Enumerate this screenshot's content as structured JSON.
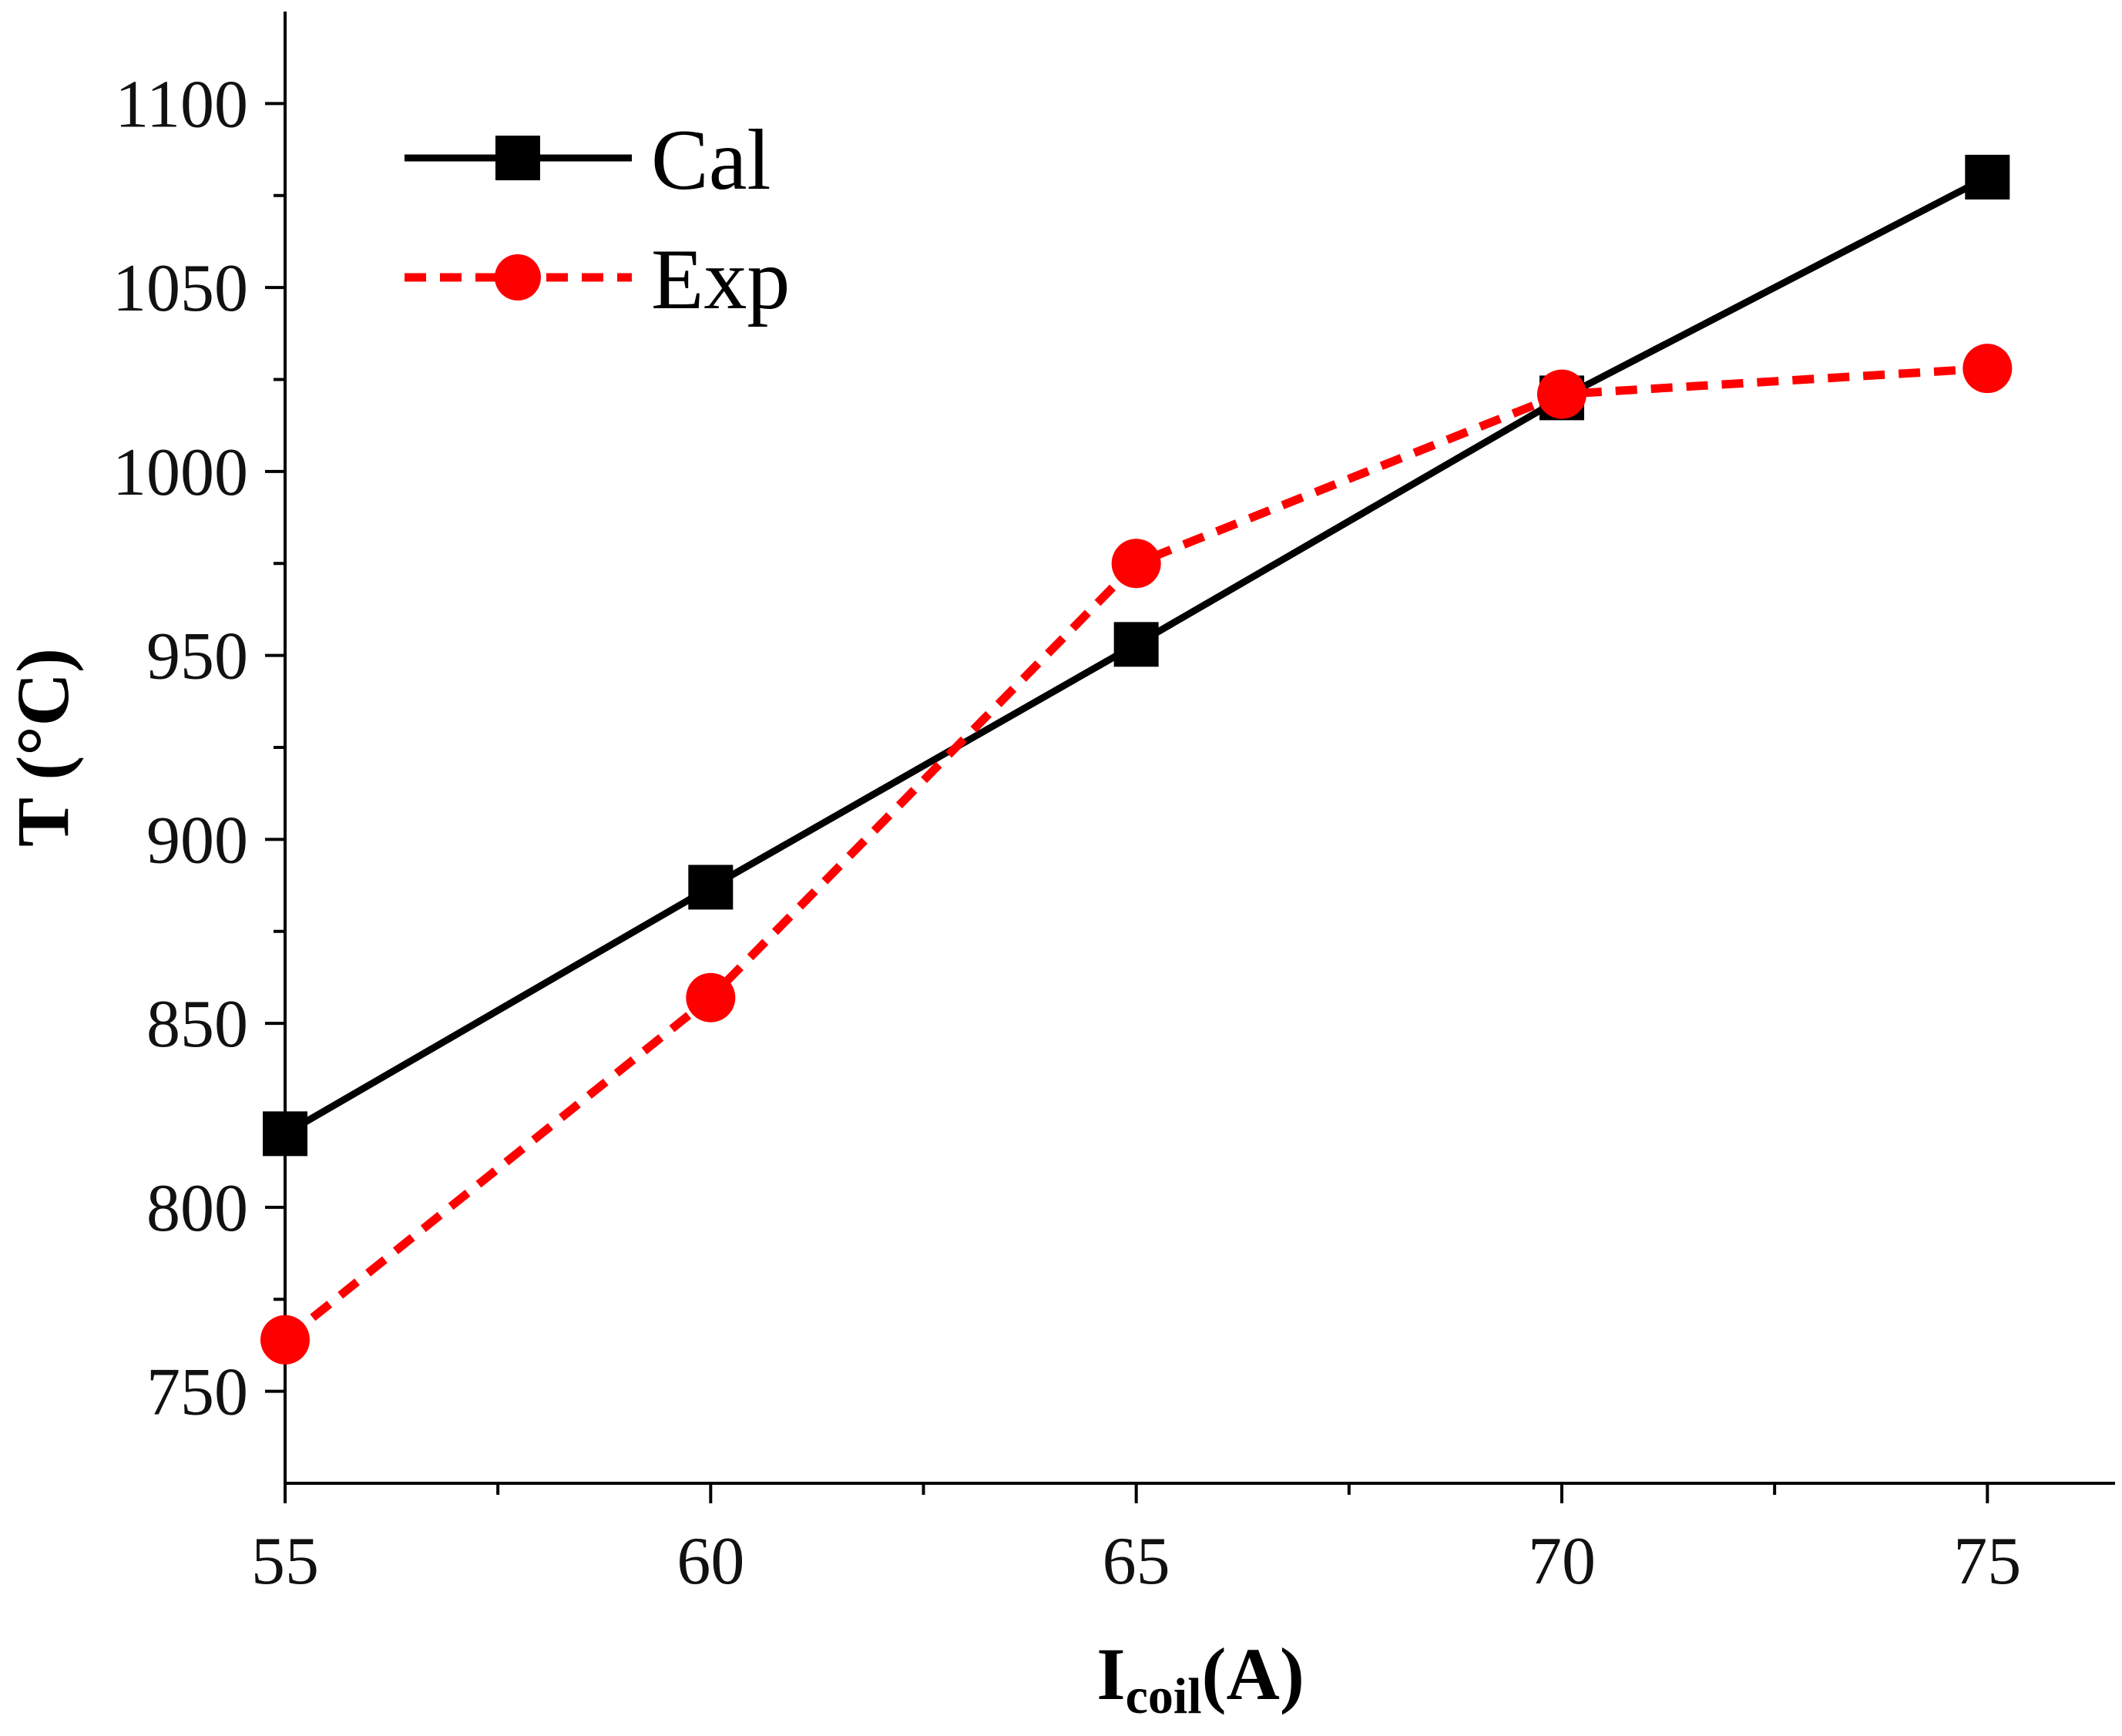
{
  "chart_data": {
    "type": "line",
    "title": "",
    "xlabel": "I",
    "xlabel_subscript": "coil",
    "xlabel_suffix": "(A)",
    "ylabel": "T (°C)",
    "xlim": [
      55,
      76.5
    ],
    "ylim": [
      725,
      1125
    ],
    "x_ticks": [
      55,
      60,
      65,
      70,
      75
    ],
    "y_ticks": [
      750,
      800,
      850,
      900,
      950,
      1000,
      1050,
      1100
    ],
    "x_tick_labels": [
      "55",
      "60",
      "65",
      "70",
      "75"
    ],
    "y_tick_labels": [
      "750",
      "800",
      "850",
      "900",
      "950",
      "1000",
      "1050",
      "1100"
    ],
    "x_minor_ticks": [
      57.5,
      62.5,
      67.5,
      72.5
    ],
    "y_minor_ticks": [
      775,
      825,
      875,
      925,
      975,
      1025,
      1075
    ],
    "grid": false,
    "legend_position": "top-left",
    "x": [
      55,
      60,
      65,
      70,
      75
    ],
    "series": [
      {
        "name": "Cal",
        "values": [
          820,
          887,
          953,
          1020,
          1080
        ],
        "color": "#000000",
        "line_style": "solid",
        "marker": "square"
      },
      {
        "name": "Exp",
        "values": [
          764,
          857,
          975,
          1021,
          1028
        ],
        "color": "#ff0000",
        "line_style": "dashed",
        "marker": "circle"
      }
    ]
  }
}
